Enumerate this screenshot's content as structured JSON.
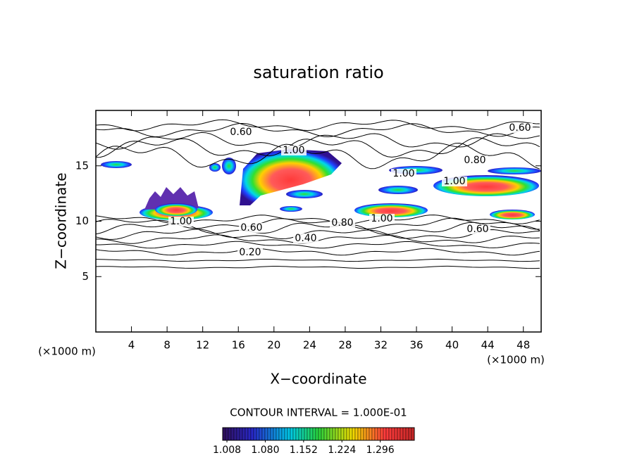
{
  "chart_data": {
    "type": "contour",
    "title": "saturation ratio",
    "xlabel": "X−coordinate",
    "ylabel": "Z−coordinate",
    "x_unit": "(×1000 m)",
    "y_unit": "(×1000 m)",
    "xlim": [
      0,
      50
    ],
    "xticks": [
      4,
      8,
      12,
      16,
      20,
      24,
      28,
      32,
      36,
      40,
      44,
      48
    ],
    "ylim": [
      0,
      20
    ],
    "yticks": [
      5,
      10,
      15
    ],
    "contour_levels": [
      {
        "value": 0.2,
        "label": "0.20"
      },
      {
        "value": 0.4,
        "label": "0.40"
      },
      {
        "value": 0.6,
        "label": "0.60"
      },
      {
        "value": 0.8,
        "label": "0.80"
      },
      {
        "value": 1.0,
        "label": "1.00"
      }
    ],
    "contour_interval": "CONTOUR INTERVAL = 1.000E-01",
    "colorbar": {
      "clim": [
        1.0,
        1.36
      ],
      "ticks": [
        1.008,
        {
          "value": 1.08,
          "label": "1.080"
        },
        1.152,
        1.224,
        1.296
      ]
    }
  }
}
